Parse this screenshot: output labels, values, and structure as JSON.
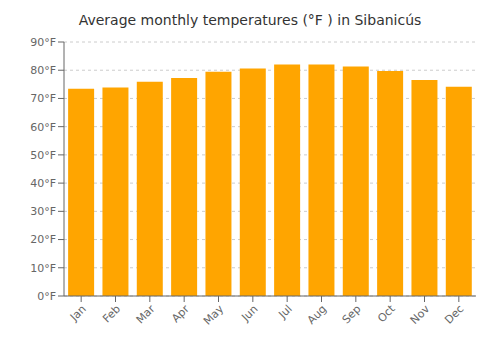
{
  "chart_data": {
    "type": "bar",
    "title": "Average monthly temperatures (°F ) in Sibanicús",
    "categories": [
      "Jan",
      "Feb",
      "Mar",
      "Apr",
      "May",
      "Jun",
      "Jul",
      "Aug",
      "Sep",
      "Oct",
      "Nov",
      "Dec"
    ],
    "values": [
      73.4,
      73.9,
      75.9,
      77.2,
      79.5,
      80.6,
      82.0,
      82.0,
      81.3,
      79.7,
      76.5,
      74.1
    ],
    "color": "#FFA500",
    "ylim": [
      0,
      90
    ],
    "yticks": [
      {
        "value": 0,
        "label": "0°F"
      },
      {
        "value": 10,
        "label": "10°F"
      },
      {
        "value": 20,
        "label": "20°F"
      },
      {
        "value": 30,
        "label": "30°F"
      },
      {
        "value": 40,
        "label": "40°F"
      },
      {
        "value": 50,
        "label": "50°F"
      },
      {
        "value": 60,
        "label": "60°F"
      },
      {
        "value": 70,
        "label": "70°F"
      },
      {
        "value": 80,
        "label": "80°F"
      },
      {
        "value": 90,
        "label": "90°F"
      }
    ],
    "grid": true
  }
}
